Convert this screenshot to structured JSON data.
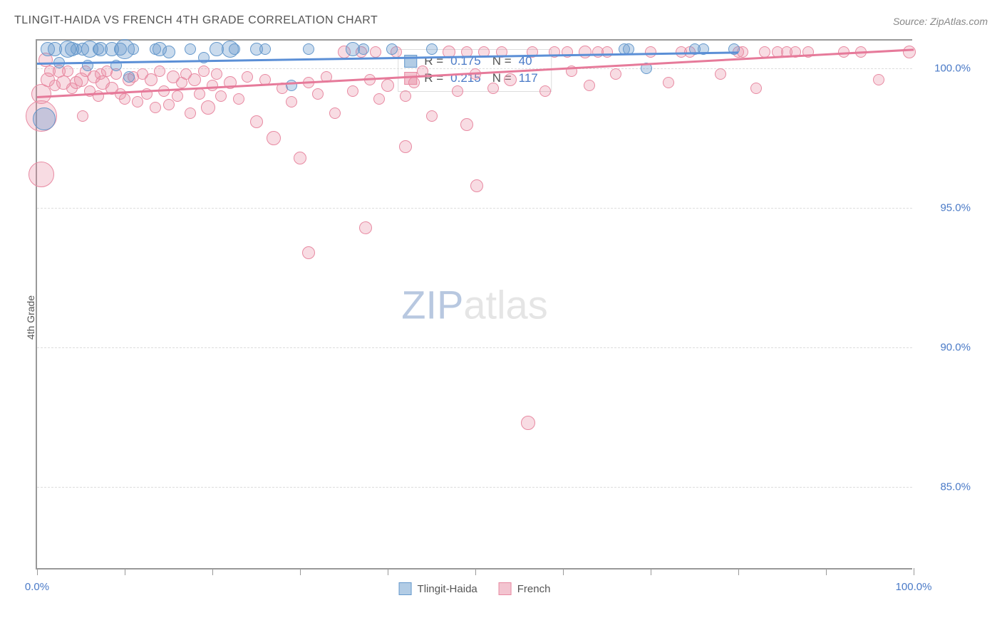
{
  "chart": {
    "type": "scatter",
    "title": "TLINGIT-HAIDA VS FRENCH 4TH GRADE CORRELATION CHART",
    "source": "Source: ZipAtlas.com",
    "y_axis_label": "4th Grade",
    "xlim": [
      0,
      100
    ],
    "ylim": [
      82,
      101
    ],
    "y_ticks": [
      {
        "value": 85.0,
        "label": "85.0%"
      },
      {
        "value": 90.0,
        "label": "90.0%"
      },
      {
        "value": 95.0,
        "label": "95.0%"
      },
      {
        "value": 100.0,
        "label": "100.0%"
      }
    ],
    "x_ticks": [
      0,
      10,
      20,
      30,
      40,
      50,
      60,
      70,
      80,
      90,
      100
    ],
    "x_tick_labels": [
      {
        "value": 0,
        "label": "0.0%"
      },
      {
        "value": 100,
        "label": "100.0%"
      }
    ],
    "grid_color": "#dddddd",
    "background_color": "#ffffff",
    "axis_color": "#999999",
    "tick_label_color": "#4a7ac7",
    "title_color": "#555555",
    "watermark": {
      "zip": "ZIP",
      "atlas": "atlas"
    },
    "series": [
      {
        "name": "Tlingit-Haida",
        "color_fill": "rgba(102,153,204,0.35)",
        "color_stroke": "#6699cc",
        "stats": {
          "R_label": "R =",
          "R": "0.175",
          "N_label": "N =",
          "N": "40"
        },
        "trend": {
          "x0": 0,
          "y0": 100.2,
          "x1": 80,
          "y1": 100.6
        },
        "points": [
          {
            "x": 0.8,
            "y": 98.2,
            "r": 16
          },
          {
            "x": 1.2,
            "y": 100.7,
            "r": 10
          },
          {
            "x": 2.0,
            "y": 100.7,
            "r": 10
          },
          {
            "x": 2.5,
            "y": 100.2,
            "r": 8
          },
          {
            "x": 3.5,
            "y": 100.7,
            "r": 12
          },
          {
            "x": 4.0,
            "y": 100.7,
            "r": 10
          },
          {
            "x": 4.5,
            "y": 100.7,
            "r": 8
          },
          {
            "x": 5.2,
            "y": 100.7,
            "r": 9
          },
          {
            "x": 5.8,
            "y": 100.1,
            "r": 8
          },
          {
            "x": 6.0,
            "y": 100.7,
            "r": 12
          },
          {
            "x": 7.0,
            "y": 100.7,
            "r": 8
          },
          {
            "x": 7.2,
            "y": 100.7,
            "r": 10
          },
          {
            "x": 8.5,
            "y": 100.7,
            "r": 10
          },
          {
            "x": 9.0,
            "y": 100.1,
            "r": 8
          },
          {
            "x": 9.5,
            "y": 100.7,
            "r": 9
          },
          {
            "x": 10.0,
            "y": 100.7,
            "r": 14
          },
          {
            "x": 10.5,
            "y": 99.7,
            "r": 8
          },
          {
            "x": 11.0,
            "y": 100.7,
            "r": 8
          },
          {
            "x": 13.5,
            "y": 100.7,
            "r": 8
          },
          {
            "x": 14.0,
            "y": 100.7,
            "r": 10
          },
          {
            "x": 15.0,
            "y": 100.6,
            "r": 9
          },
          {
            "x": 17.5,
            "y": 100.7,
            "r": 8
          },
          {
            "x": 19.0,
            "y": 100.4,
            "r": 8
          },
          {
            "x": 20.5,
            "y": 100.7,
            "r": 10
          },
          {
            "x": 22.0,
            "y": 100.7,
            "r": 12
          },
          {
            "x": 22.5,
            "y": 100.7,
            "r": 8
          },
          {
            "x": 25.0,
            "y": 100.7,
            "r": 9
          },
          {
            "x": 26.0,
            "y": 100.7,
            "r": 8
          },
          {
            "x": 29.0,
            "y": 99.4,
            "r": 8
          },
          {
            "x": 31.0,
            "y": 100.7,
            "r": 8
          },
          {
            "x": 36.0,
            "y": 100.7,
            "r": 10
          },
          {
            "x": 37.2,
            "y": 100.7,
            "r": 8
          },
          {
            "x": 40.5,
            "y": 100.7,
            "r": 8
          },
          {
            "x": 45.0,
            "y": 100.7,
            "r": 8
          },
          {
            "x": 67.0,
            "y": 100.7,
            "r": 8
          },
          {
            "x": 67.5,
            "y": 100.7,
            "r": 8
          },
          {
            "x": 69.5,
            "y": 100.0,
            "r": 8
          },
          {
            "x": 75.0,
            "y": 100.7,
            "r": 8
          },
          {
            "x": 76.0,
            "y": 100.7,
            "r": 8
          },
          {
            "x": 79.5,
            "y": 100.7,
            "r": 8
          }
        ]
      },
      {
        "name": "French",
        "color_fill": "rgba(232,138,162,0.3)",
        "color_stroke": "#e88aa2",
        "stats": {
          "R_label": "R =",
          "R": "0.215",
          "N_label": "N =",
          "N": "117"
        },
        "trend": {
          "x0": 0,
          "y0": 99.0,
          "x1": 100,
          "y1": 100.7
        },
        "points": [
          {
            "x": 0.5,
            "y": 99.1,
            "r": 14
          },
          {
            "x": 0.5,
            "y": 96.2,
            "r": 18
          },
          {
            "x": 0.5,
            "y": 98.3,
            "r": 22
          },
          {
            "x": 1.0,
            "y": 100.3,
            "r": 10
          },
          {
            "x": 1.2,
            "y": 99.6,
            "r": 10
          },
          {
            "x": 1.5,
            "y": 99.9,
            "r": 8
          },
          {
            "x": 2.0,
            "y": 99.4,
            "r": 8
          },
          {
            "x": 2.5,
            "y": 99.9,
            "r": 9
          },
          {
            "x": 3.0,
            "y": 99.5,
            "r": 10
          },
          {
            "x": 3.5,
            "y": 99.9,
            "r": 8
          },
          {
            "x": 4.0,
            "y": 99.3,
            "r": 8
          },
          {
            "x": 4.5,
            "y": 99.5,
            "r": 9
          },
          {
            "x": 5.0,
            "y": 99.6,
            "r": 10
          },
          {
            "x": 5.2,
            "y": 98.3,
            "r": 8
          },
          {
            "x": 5.5,
            "y": 99.9,
            "r": 8
          },
          {
            "x": 6.0,
            "y": 99.2,
            "r": 8
          },
          {
            "x": 6.5,
            "y": 99.7,
            "r": 9
          },
          {
            "x": 7.0,
            "y": 99.0,
            "r": 8
          },
          {
            "x": 7.2,
            "y": 99.8,
            "r": 8
          },
          {
            "x": 7.5,
            "y": 99.5,
            "r": 10
          },
          {
            "x": 8.0,
            "y": 99.9,
            "r": 8
          },
          {
            "x": 8.5,
            "y": 99.3,
            "r": 9
          },
          {
            "x": 9.0,
            "y": 99.8,
            "r": 8
          },
          {
            "x": 9.5,
            "y": 99.1,
            "r": 8
          },
          {
            "x": 10.0,
            "y": 98.9,
            "r": 8
          },
          {
            "x": 10.5,
            "y": 99.6,
            "r": 9
          },
          {
            "x": 11.0,
            "y": 99.7,
            "r": 8
          },
          {
            "x": 11.5,
            "y": 98.8,
            "r": 8
          },
          {
            "x": 12.0,
            "y": 99.8,
            "r": 8
          },
          {
            "x": 12.5,
            "y": 99.1,
            "r": 8
          },
          {
            "x": 13.0,
            "y": 99.6,
            "r": 9
          },
          {
            "x": 13.5,
            "y": 98.6,
            "r": 8
          },
          {
            "x": 14.0,
            "y": 99.9,
            "r": 8
          },
          {
            "x": 14.5,
            "y": 99.2,
            "r": 8
          },
          {
            "x": 15.0,
            "y": 98.7,
            "r": 8
          },
          {
            "x": 15.5,
            "y": 99.7,
            "r": 9
          },
          {
            "x": 16.0,
            "y": 99.0,
            "r": 8
          },
          {
            "x": 16.5,
            "y": 99.5,
            "r": 8
          },
          {
            "x": 17.0,
            "y": 99.8,
            "r": 8
          },
          {
            "x": 17.5,
            "y": 98.4,
            "r": 8
          },
          {
            "x": 18.0,
            "y": 99.6,
            "r": 9
          },
          {
            "x": 18.5,
            "y": 99.1,
            "r": 8
          },
          {
            "x": 19.0,
            "y": 99.9,
            "r": 8
          },
          {
            "x": 19.5,
            "y": 98.6,
            "r": 10
          },
          {
            "x": 20.0,
            "y": 99.4,
            "r": 8
          },
          {
            "x": 20.5,
            "y": 99.8,
            "r": 8
          },
          {
            "x": 21.0,
            "y": 99.0,
            "r": 8
          },
          {
            "x": 22.0,
            "y": 99.5,
            "r": 9
          },
          {
            "x": 23.0,
            "y": 98.9,
            "r": 8
          },
          {
            "x": 24.0,
            "y": 99.7,
            "r": 8
          },
          {
            "x": 25.0,
            "y": 98.1,
            "r": 9
          },
          {
            "x": 26.0,
            "y": 99.6,
            "r": 8
          },
          {
            "x": 27.0,
            "y": 97.5,
            "r": 10
          },
          {
            "x": 28.0,
            "y": 99.3,
            "r": 8
          },
          {
            "x": 29.0,
            "y": 98.8,
            "r": 8
          },
          {
            "x": 30.0,
            "y": 96.8,
            "r": 9
          },
          {
            "x": 31.0,
            "y": 99.5,
            "r": 8
          },
          {
            "x": 31.0,
            "y": 93.4,
            "r": 9
          },
          {
            "x": 32.0,
            "y": 99.1,
            "r": 8
          },
          {
            "x": 33.0,
            "y": 99.7,
            "r": 8
          },
          {
            "x": 34.0,
            "y": 98.4,
            "r": 8
          },
          {
            "x": 35.0,
            "y": 100.6,
            "r": 9
          },
          {
            "x": 36.0,
            "y": 99.2,
            "r": 8
          },
          {
            "x": 37.0,
            "y": 100.6,
            "r": 8
          },
          {
            "x": 37.5,
            "y": 94.3,
            "r": 9
          },
          {
            "x": 38.0,
            "y": 99.6,
            "r": 8
          },
          {
            "x": 38.6,
            "y": 100.6,
            "r": 8
          },
          {
            "x": 39.0,
            "y": 98.9,
            "r": 8
          },
          {
            "x": 40.0,
            "y": 99.4,
            "r": 9
          },
          {
            "x": 41.0,
            "y": 100.6,
            "r": 8
          },
          {
            "x": 42.0,
            "y": 99.0,
            "r": 8
          },
          {
            "x": 42.0,
            "y": 97.2,
            "r": 9
          },
          {
            "x": 43.0,
            "y": 99.5,
            "r": 8
          },
          {
            "x": 44.0,
            "y": 99.9,
            "r": 8
          },
          {
            "x": 45.0,
            "y": 98.3,
            "r": 8
          },
          {
            "x": 47.0,
            "y": 100.6,
            "r": 9
          },
          {
            "x": 48.0,
            "y": 99.2,
            "r": 8
          },
          {
            "x": 49.0,
            "y": 100.6,
            "r": 8
          },
          {
            "x": 49.0,
            "y": 98.0,
            "r": 9
          },
          {
            "x": 50.0,
            "y": 99.8,
            "r": 8
          },
          {
            "x": 50.2,
            "y": 95.8,
            "r": 9
          },
          {
            "x": 51.0,
            "y": 100.6,
            "r": 8
          },
          {
            "x": 52.0,
            "y": 99.3,
            "r": 8
          },
          {
            "x": 53.0,
            "y": 100.6,
            "r": 8
          },
          {
            "x": 54.0,
            "y": 99.6,
            "r": 9
          },
          {
            "x": 56.0,
            "y": 87.3,
            "r": 10
          },
          {
            "x": 56.5,
            "y": 100.6,
            "r": 8
          },
          {
            "x": 58.0,
            "y": 99.2,
            "r": 8
          },
          {
            "x": 59.0,
            "y": 100.6,
            "r": 8
          },
          {
            "x": 60.5,
            "y": 100.6,
            "r": 8
          },
          {
            "x": 61.0,
            "y": 99.9,
            "r": 8
          },
          {
            "x": 62.5,
            "y": 100.6,
            "r": 9
          },
          {
            "x": 63.0,
            "y": 99.4,
            "r": 8
          },
          {
            "x": 64.0,
            "y": 100.6,
            "r": 8
          },
          {
            "x": 65.0,
            "y": 100.6,
            "r": 8
          },
          {
            "x": 66.0,
            "y": 99.8,
            "r": 8
          },
          {
            "x": 70.0,
            "y": 100.6,
            "r": 8
          },
          {
            "x": 72.0,
            "y": 99.5,
            "r": 8
          },
          {
            "x": 73.5,
            "y": 100.6,
            "r": 8
          },
          {
            "x": 74.5,
            "y": 100.6,
            "r": 8
          },
          {
            "x": 78.0,
            "y": 99.8,
            "r": 8
          },
          {
            "x": 80.0,
            "y": 100.6,
            "r": 8
          },
          {
            "x": 80.5,
            "y": 100.6,
            "r": 8
          },
          {
            "x": 82.0,
            "y": 99.3,
            "r": 8
          },
          {
            "x": 83.0,
            "y": 100.6,
            "r": 8
          },
          {
            "x": 84.5,
            "y": 100.6,
            "r": 8
          },
          {
            "x": 85.5,
            "y": 100.6,
            "r": 8
          },
          {
            "x": 86.5,
            "y": 100.6,
            "r": 8
          },
          {
            "x": 88.0,
            "y": 100.6,
            "r": 8
          },
          {
            "x": 92.0,
            "y": 100.6,
            "r": 8
          },
          {
            "x": 94.0,
            "y": 100.6,
            "r": 8
          },
          {
            "x": 96.0,
            "y": 99.6,
            "r": 8
          },
          {
            "x": 99.5,
            "y": 100.6,
            "r": 9
          }
        ]
      }
    ],
    "legend": [
      {
        "swatch": "blue",
        "label": "Tlingit-Haida"
      },
      {
        "swatch": "pink",
        "label": "French"
      }
    ]
  }
}
